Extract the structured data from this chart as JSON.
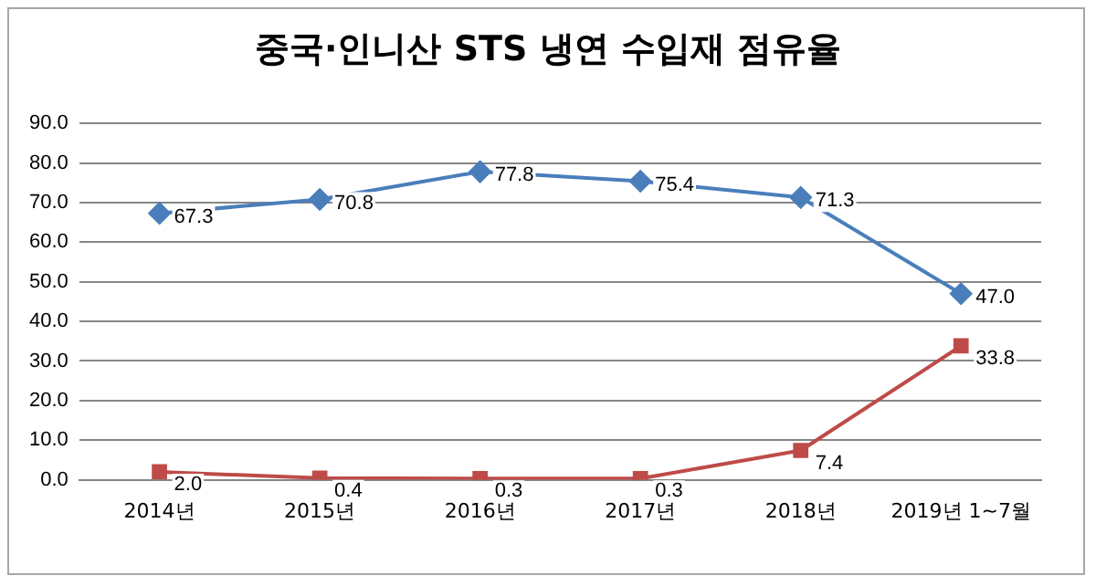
{
  "chart_data": {
    "type": "line",
    "title": "중국·인니산 STS 냉연 수입재 점유율",
    "categories": [
      "2014년",
      "2015년",
      "2016년",
      "2017년",
      "2018년",
      "2019년 1~7월"
    ],
    "series": [
      {
        "color": "#4a7ebb",
        "marker": "diamond",
        "values": [
          67.3,
          70.8,
          77.8,
          75.4,
          71.3,
          47.0
        ],
        "value_labels": [
          "67.3",
          "70.8",
          "77.8",
          "75.4",
          "71.3",
          "47.0"
        ]
      },
      {
        "color": "#be4b48",
        "marker": "square",
        "values": [
          2.0,
          0.4,
          0.3,
          0.3,
          7.4,
          33.8
        ],
        "value_labels": [
          "2.0",
          "0.4",
          "0.3",
          "0.3",
          "7.4",
          "33.8"
        ]
      }
    ],
    "ylim": [
      0,
      90
    ],
    "yticks": [
      {
        "value": 0,
        "label": "0.0"
      },
      {
        "value": 10,
        "label": "10.0"
      },
      {
        "value": 20,
        "label": "20.0"
      },
      {
        "value": 30,
        "label": "30.0"
      },
      {
        "value": 40,
        "label": "40.0"
      },
      {
        "value": 50,
        "label": "50.0"
      },
      {
        "value": 60,
        "label": "60.0"
      },
      {
        "value": 70,
        "label": "70.0"
      },
      {
        "value": 80,
        "label": "80.0"
      },
      {
        "value": 90,
        "label": "90.0"
      }
    ],
    "grid": "y",
    "legend": false,
    "line_style": "solid"
  }
}
